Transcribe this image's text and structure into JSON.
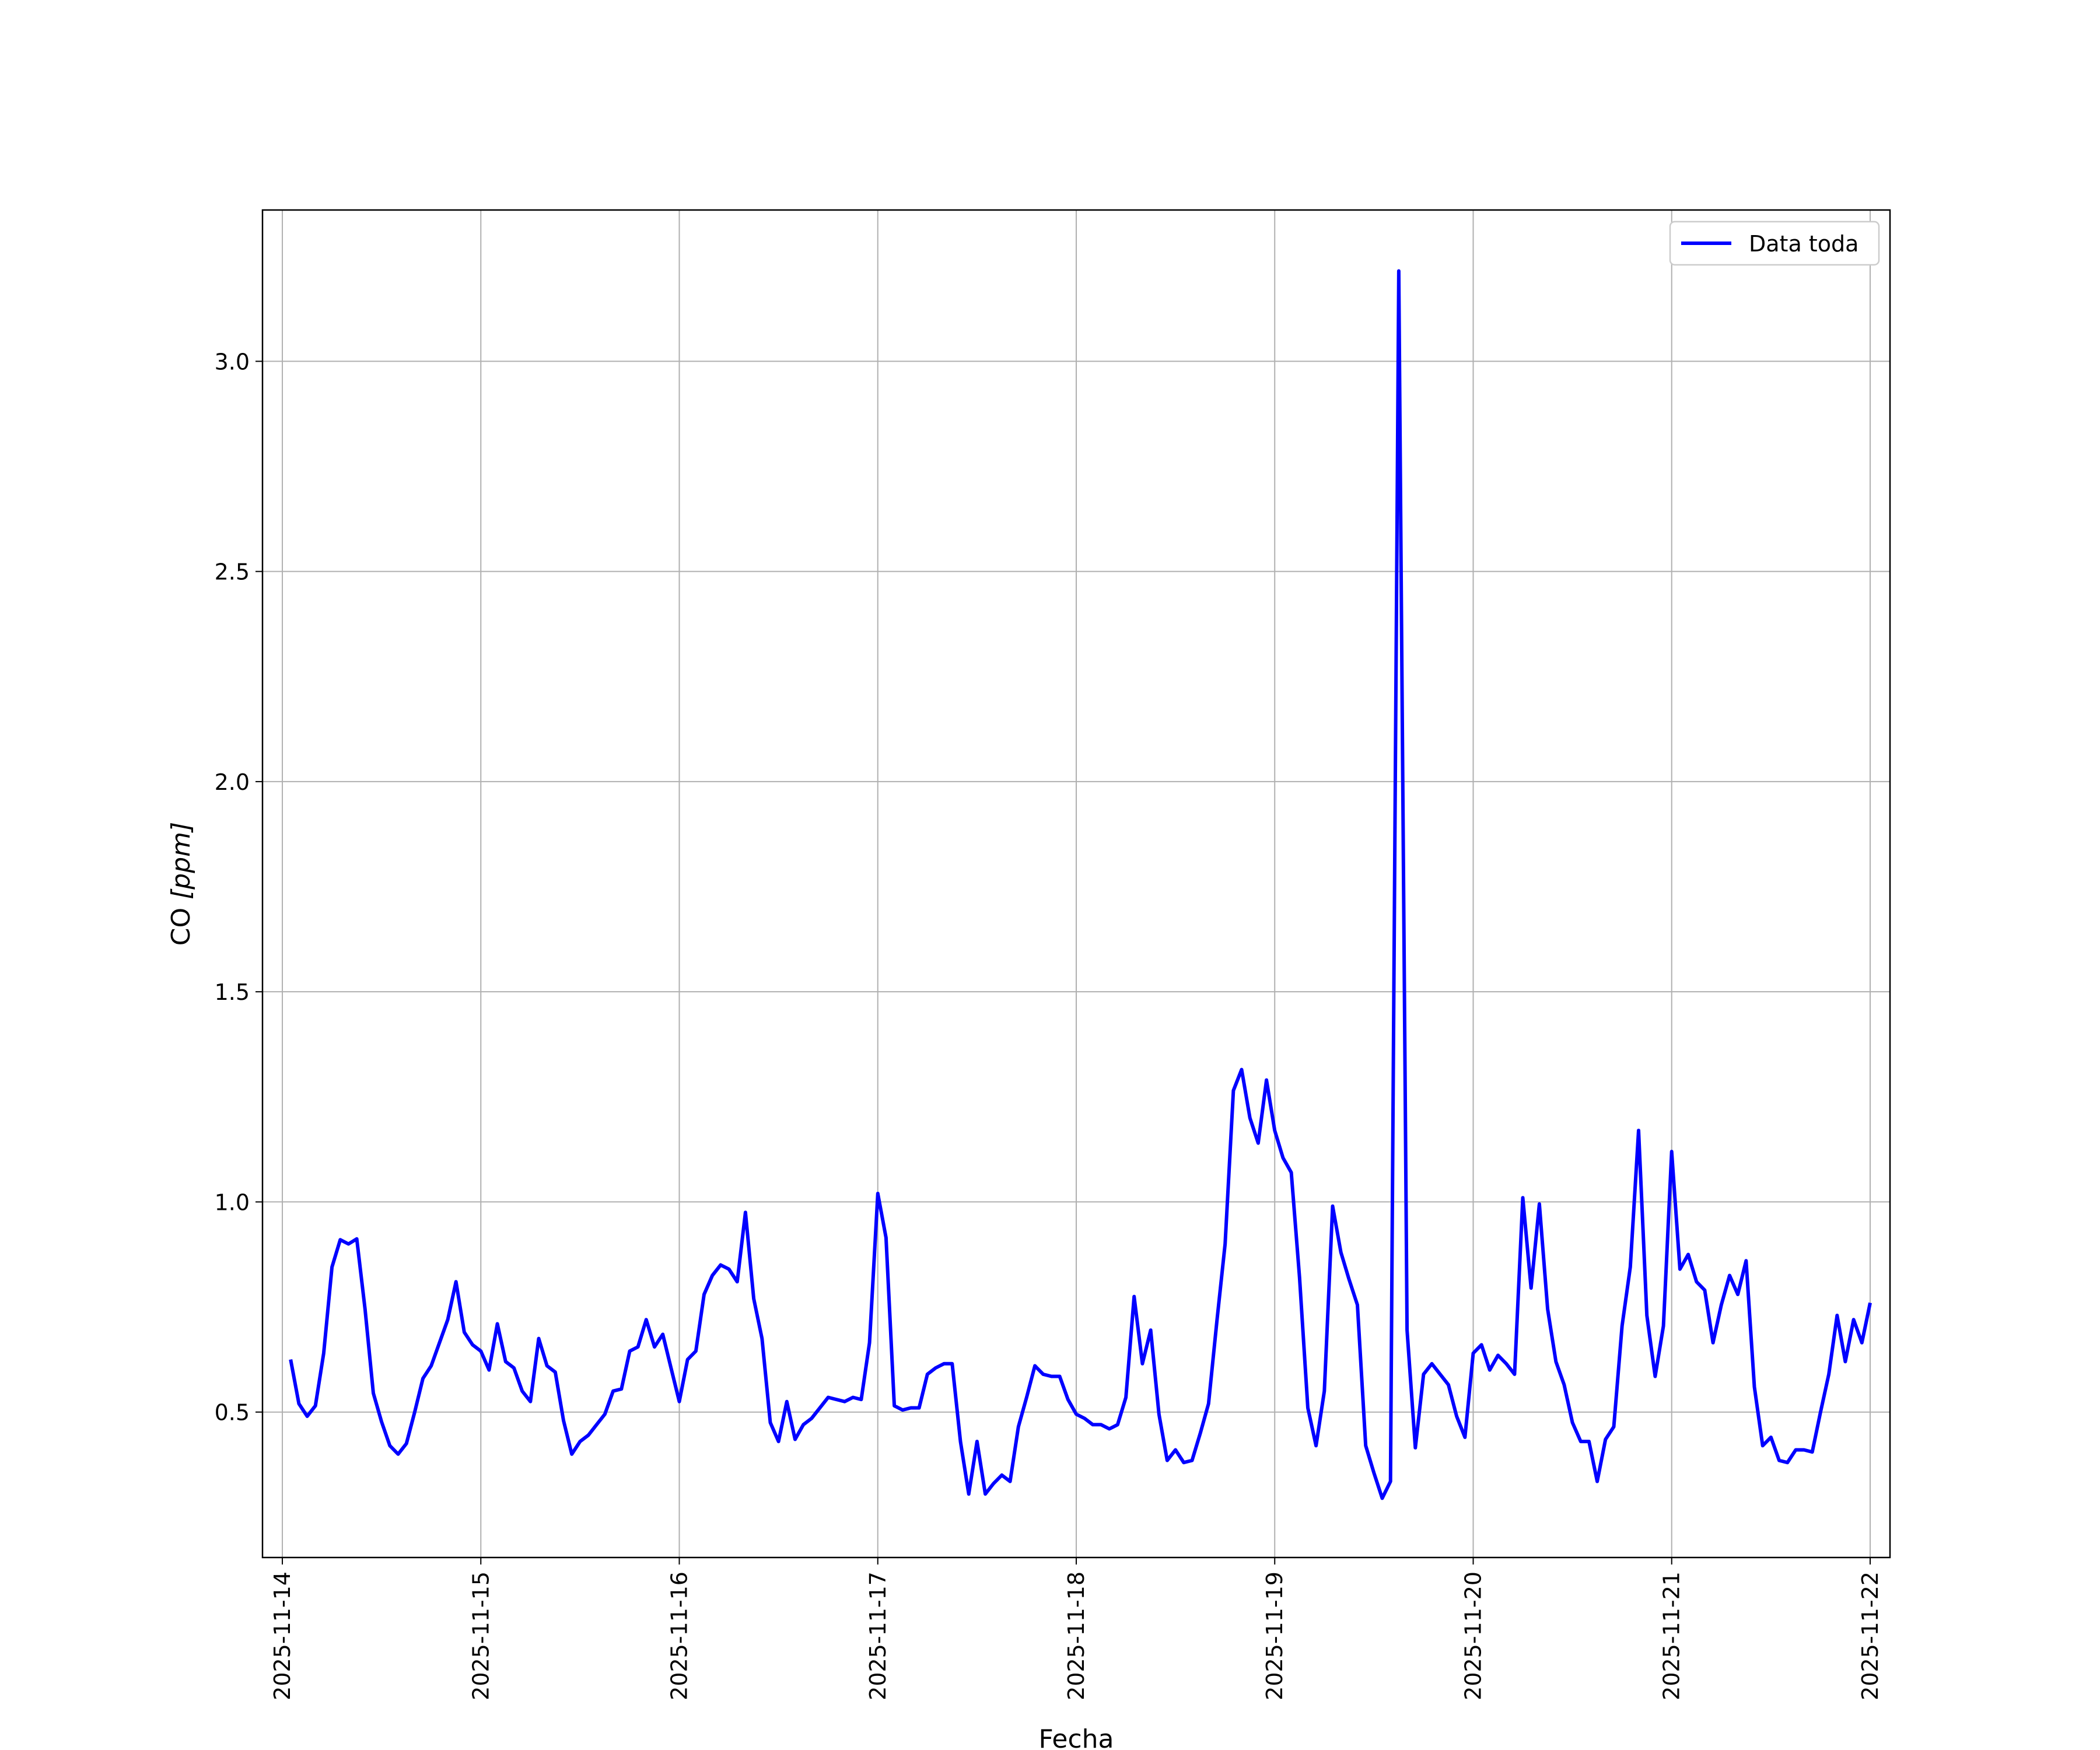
{
  "chart_data": {
    "type": "line",
    "title": "",
    "xlabel": "Fecha",
    "ylabel_main": "CO ",
    "ylabel_unit": "[ppm]",
    "xlim": [
      "2025-11-13T21:36:00",
      "2025-11-22T02:24:00"
    ],
    "ylim": [
      0.154,
      3.36
    ],
    "grid": true,
    "legend_position": "top-right",
    "x_ticks": [
      "2025-11-14",
      "2025-11-15",
      "2025-11-16",
      "2025-11-17",
      "2025-11-18",
      "2025-11-19",
      "2025-11-20",
      "2025-11-21",
      "2025-11-22"
    ],
    "y_ticks": [
      0.5,
      1.0,
      1.5,
      2.0,
      2.5,
      3.0
    ],
    "y_tick_labels": [
      "0.5",
      "1.0",
      "1.5",
      "2.0",
      "2.5",
      "3.0"
    ],
    "series": [
      {
        "name": "Data toda",
        "color": "#0000ff",
        "x": [
          "2025-11-14T01:00:00",
          "2025-11-14T02:00:00",
          "2025-11-14T03:00:00",
          "2025-11-14T04:00:00",
          "2025-11-14T05:00:00",
          "2025-11-14T06:00:00",
          "2025-11-14T07:00:00",
          "2025-11-14T08:00:00",
          "2025-11-14T09:00:00",
          "2025-11-14T10:00:00",
          "2025-11-14T11:00:00",
          "2025-11-14T12:00:00",
          "2025-11-14T13:00:00",
          "2025-11-14T14:00:00",
          "2025-11-14T15:00:00",
          "2025-11-14T16:00:00",
          "2025-11-14T17:00:00",
          "2025-11-14T18:00:00",
          "2025-11-14T19:00:00",
          "2025-11-14T20:00:00",
          "2025-11-14T21:00:00",
          "2025-11-14T22:00:00",
          "2025-11-14T23:00:00",
          "2025-11-15T00:00:00",
          "2025-11-15T01:00:00",
          "2025-11-15T02:00:00",
          "2025-11-15T03:00:00",
          "2025-11-15T04:00:00",
          "2025-11-15T05:00:00",
          "2025-11-15T06:00:00",
          "2025-11-15T07:00:00",
          "2025-11-15T08:00:00",
          "2025-11-15T09:00:00",
          "2025-11-15T10:00:00",
          "2025-11-15T11:00:00",
          "2025-11-15T12:00:00",
          "2025-11-15T13:00:00",
          "2025-11-15T14:00:00",
          "2025-11-15T15:00:00",
          "2025-11-15T16:00:00",
          "2025-11-15T17:00:00",
          "2025-11-15T18:00:00",
          "2025-11-15T19:00:00",
          "2025-11-15T20:00:00",
          "2025-11-15T21:00:00",
          "2025-11-15T22:00:00",
          "2025-11-15T23:00:00",
          "2025-11-16T00:00:00",
          "2025-11-16T01:00:00",
          "2025-11-16T02:00:00",
          "2025-11-16T03:00:00",
          "2025-11-16T04:00:00",
          "2025-11-16T05:00:00",
          "2025-11-16T06:00:00",
          "2025-11-16T07:00:00",
          "2025-11-16T08:00:00",
          "2025-11-16T09:00:00",
          "2025-11-16T10:00:00",
          "2025-11-16T11:00:00",
          "2025-11-16T12:00:00",
          "2025-11-16T13:00:00",
          "2025-11-16T14:00:00",
          "2025-11-16T15:00:00",
          "2025-11-16T16:00:00",
          "2025-11-16T17:00:00",
          "2025-11-16T18:00:00",
          "2025-11-16T19:00:00",
          "2025-11-16T20:00:00",
          "2025-11-16T21:00:00",
          "2025-11-16T22:00:00",
          "2025-11-16T23:00:00",
          "2025-11-17T00:00:00",
          "2025-11-17T01:00:00",
          "2025-11-17T02:00:00",
          "2025-11-17T03:00:00",
          "2025-11-17T04:00:00",
          "2025-11-17T05:00:00",
          "2025-11-17T06:00:00",
          "2025-11-17T07:00:00",
          "2025-11-17T08:00:00",
          "2025-11-17T09:00:00",
          "2025-11-17T10:00:00",
          "2025-11-17T11:00:00",
          "2025-11-17T12:00:00",
          "2025-11-17T13:00:00",
          "2025-11-17T14:00:00",
          "2025-11-17T15:00:00",
          "2025-11-17T16:00:00",
          "2025-11-17T17:00:00",
          "2025-11-17T18:00:00",
          "2025-11-17T19:00:00",
          "2025-11-17T20:00:00",
          "2025-11-17T21:00:00",
          "2025-11-17T22:00:00",
          "2025-11-17T23:00:00",
          "2025-11-18T00:00:00",
          "2025-11-18T01:00:00",
          "2025-11-18T02:00:00",
          "2025-11-18T03:00:00",
          "2025-11-18T04:00:00",
          "2025-11-18T05:00:00",
          "2025-11-18T06:00:00",
          "2025-11-18T07:00:00",
          "2025-11-18T08:00:00",
          "2025-11-18T09:00:00",
          "2025-11-18T10:00:00",
          "2025-11-18T11:00:00",
          "2025-11-18T12:00:00",
          "2025-11-18T13:00:00",
          "2025-11-18T14:00:00",
          "2025-11-18T15:00:00",
          "2025-11-18T16:00:00",
          "2025-11-18T17:00:00",
          "2025-11-18T18:00:00",
          "2025-11-18T19:00:00",
          "2025-11-18T20:00:00",
          "2025-11-18T21:00:00",
          "2025-11-18T22:00:00",
          "2025-11-18T23:00:00",
          "2025-11-19T00:00:00",
          "2025-11-19T01:00:00",
          "2025-11-19T02:00:00",
          "2025-11-19T03:00:00",
          "2025-11-19T04:00:00",
          "2025-11-19T05:00:00",
          "2025-11-19T06:00:00",
          "2025-11-19T07:00:00",
          "2025-11-19T08:00:00",
          "2025-11-19T09:00:00",
          "2025-11-19T10:00:00",
          "2025-11-19T11:00:00",
          "2025-11-19T12:00:00",
          "2025-11-19T13:00:00",
          "2025-11-19T14:00:00",
          "2025-11-19T15:00:00",
          "2025-11-19T16:00:00",
          "2025-11-19T17:00:00",
          "2025-11-19T18:00:00",
          "2025-11-19T19:00:00",
          "2025-11-19T20:00:00",
          "2025-11-19T21:00:00",
          "2025-11-19T22:00:00",
          "2025-11-19T23:00:00",
          "2025-11-20T00:00:00",
          "2025-11-20T01:00:00",
          "2025-11-20T02:00:00",
          "2025-11-20T03:00:00",
          "2025-11-20T04:00:00",
          "2025-11-20T05:00:00",
          "2025-11-20T06:00:00",
          "2025-11-20T07:00:00",
          "2025-11-20T08:00:00",
          "2025-11-20T09:00:00",
          "2025-11-20T10:00:00",
          "2025-11-20T11:00:00",
          "2025-11-20T12:00:00",
          "2025-11-20T13:00:00",
          "2025-11-20T14:00:00",
          "2025-11-20T15:00:00",
          "2025-11-20T16:00:00",
          "2025-11-20T17:00:00",
          "2025-11-20T18:00:00",
          "2025-11-20T19:00:00",
          "2025-11-20T20:00:00",
          "2025-11-20T21:00:00",
          "2025-11-20T22:00:00",
          "2025-11-20T23:00:00",
          "2025-11-21T00:00:00",
          "2025-11-21T01:00:00",
          "2025-11-21T02:00:00",
          "2025-11-21T03:00:00",
          "2025-11-21T04:00:00",
          "2025-11-21T05:00:00",
          "2025-11-21T06:00:00",
          "2025-11-21T07:00:00",
          "2025-11-21T08:00:00",
          "2025-11-21T09:00:00",
          "2025-11-21T10:00:00",
          "2025-11-21T11:00:00",
          "2025-11-21T12:00:00",
          "2025-11-21T13:00:00",
          "2025-11-21T14:00:00",
          "2025-11-21T15:00:00",
          "2025-11-21T16:00:00",
          "2025-11-21T17:00:00",
          "2025-11-21T18:00:00",
          "2025-11-21T19:00:00",
          "2025-11-21T20:00:00",
          "2025-11-21T21:00:00",
          "2025-11-21T22:00:00",
          "2025-11-21T23:00:00",
          "2025-11-22T00:00:00"
        ],
        "y": [
          0.625,
          0.52,
          0.49,
          0.515,
          0.64,
          0.845,
          0.91,
          0.9,
          0.912,
          0.745,
          0.545,
          0.477,
          0.42,
          0.4,
          0.425,
          0.5,
          0.58,
          0.61,
          0.665,
          0.72,
          0.81,
          0.69,
          0.66,
          0.645,
          0.6,
          0.71,
          0.62,
          0.605,
          0.55,
          0.525,
          0.675,
          0.61,
          0.595,
          0.48,
          0.4,
          0.43,
          0.445,
          0.47,
          0.495,
          0.55,
          0.555,
          0.645,
          0.655,
          0.72,
          0.655,
          0.685,
          0.605,
          0.525,
          0.625,
          0.645,
          0.78,
          0.825,
          0.85,
          0.84,
          0.81,
          0.975,
          0.77,
          0.675,
          0.475,
          0.43,
          0.525,
          0.435,
          0.47,
          0.485,
          0.51,
          0.535,
          0.53,
          0.525,
          0.535,
          0.53,
          0.665,
          1.02,
          0.915,
          0.515,
          0.505,
          0.51,
          0.51,
          0.59,
          0.605,
          0.615,
          0.615,
          0.43,
          0.305,
          0.43,
          0.305,
          0.33,
          0.35,
          0.335,
          0.465,
          0.535,
          0.61,
          0.59,
          0.585,
          0.585,
          0.53,
          0.495,
          0.485,
          0.47,
          0.47,
          0.46,
          0.47,
          0.535,
          0.775,
          0.615,
          0.695,
          0.495,
          0.385,
          0.41,
          0.38,
          0.385,
          0.45,
          0.52,
          0.715,
          0.9,
          1.265,
          1.315,
          1.2,
          1.14,
          1.29,
          1.17,
          1.105,
          1.07,
          0.82,
          0.51,
          0.42,
          0.55,
          0.99,
          0.88,
          0.815,
          0.755,
          0.42,
          0.355,
          0.295,
          0.335,
          3.215,
          0.695,
          0.415,
          0.59,
          0.615,
          0.59,
          0.565,
          0.49,
          0.44,
          0.64,
          0.66,
          0.6,
          0.635,
          0.615,
          0.59,
          1.01,
          0.795,
          0.995,
          0.745,
          0.62,
          0.565,
          0.475,
          0.43,
          0.43,
          0.335,
          0.435,
          0.465,
          0.705,
          0.845,
          1.17,
          0.73,
          0.585,
          0.705,
          1.12,
          0.84,
          0.875,
          0.81,
          0.79,
          0.665,
          0.755,
          0.825,
          0.78,
          0.86,
          0.56,
          0.42,
          0.44,
          0.385,
          0.38,
          0.41,
          0.41,
          0.405,
          0.5,
          0.59,
          0.73,
          0.62,
          0.72,
          0.665,
          0.76
        ]
      }
    ]
  }
}
